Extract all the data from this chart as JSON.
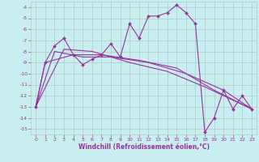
{
  "xlabel": "Windchill (Refroidissement éolien,°C)",
  "background_color": "#c8eef0",
  "grid_color": "#b0c8c8",
  "line_color": "#993399",
  "ylim": [
    -15.5,
    -3.5
  ],
  "xlim": [
    -0.5,
    23.5
  ],
  "yticks": [
    -15,
    -14,
    -13,
    -12,
    -11,
    -10,
    -9,
    -8,
    -7,
    -6,
    -5,
    -4
  ],
  "xticks": [
    0,
    1,
    2,
    3,
    4,
    5,
    6,
    7,
    8,
    9,
    10,
    11,
    12,
    13,
    14,
    15,
    16,
    17,
    18,
    19,
    20,
    21,
    22,
    23
  ],
  "series_main": [
    [
      0,
      -13.0
    ],
    [
      1,
      -9.0
    ],
    [
      2,
      -7.5
    ],
    [
      3,
      -6.8
    ],
    [
      4,
      -8.3
    ],
    [
      5,
      -9.2
    ],
    [
      6,
      -8.7
    ],
    [
      7,
      -8.3
    ],
    [
      8,
      -7.3
    ],
    [
      9,
      -8.5
    ],
    [
      10,
      -5.5
    ],
    [
      11,
      -6.8
    ],
    [
      12,
      -4.8
    ],
    [
      13,
      -4.8
    ],
    [
      14,
      -4.5
    ],
    [
      15,
      -3.8
    ],
    [
      16,
      -4.5
    ],
    [
      17,
      -5.5
    ],
    [
      18,
      -15.3
    ],
    [
      19,
      -14.0
    ],
    [
      20,
      -11.5
    ],
    [
      21,
      -13.2
    ],
    [
      22,
      -12.0
    ],
    [
      23,
      -13.2
    ]
  ],
  "series2": [
    [
      0,
      -13.0
    ],
    [
      3,
      -7.8
    ],
    [
      6,
      -8.0
    ],
    [
      10,
      -9.0
    ],
    [
      14,
      -9.8
    ],
    [
      18,
      -11.2
    ],
    [
      23,
      -13.2
    ]
  ],
  "series3": [
    [
      0,
      -13.0
    ],
    [
      2,
      -8.0
    ],
    [
      5,
      -8.5
    ],
    [
      8,
      -8.5
    ],
    [
      12,
      -9.0
    ],
    [
      16,
      -10.0
    ],
    [
      20,
      -11.5
    ],
    [
      23,
      -13.2
    ]
  ],
  "series4": [
    [
      0,
      -13.0
    ],
    [
      1,
      -9.0
    ],
    [
      4,
      -8.3
    ],
    [
      7,
      -8.3
    ],
    [
      11,
      -8.8
    ],
    [
      15,
      -9.5
    ],
    [
      19,
      -11.5
    ],
    [
      23,
      -13.2
    ]
  ]
}
